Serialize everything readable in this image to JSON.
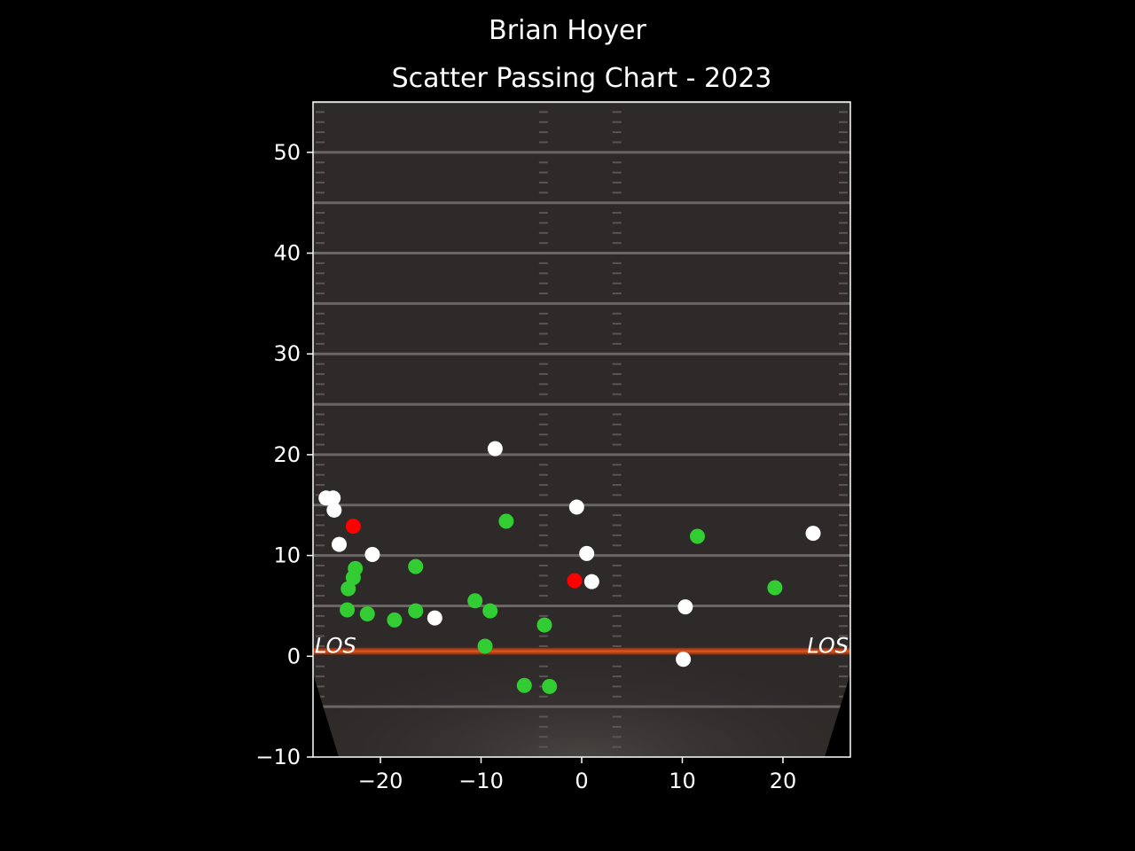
{
  "figure": {
    "suptitle": "Brian Hoyer",
    "title": "Scatter Passing Chart - 2023",
    "background_color": "#000000",
    "field_color": "#2e2a29",
    "los_label": "LOS"
  },
  "chart_data": {
    "type": "scatter",
    "title": "Scatter Passing Chart - 2023",
    "xlabel": "",
    "ylabel": "",
    "xlim": [
      -26.7,
      26.7
    ],
    "ylim": [
      -10,
      55
    ],
    "x_ticks": [
      -20,
      -10,
      0,
      10,
      20
    ],
    "y_ticks": [
      -10,
      0,
      10,
      20,
      30,
      40,
      50
    ],
    "x_tick_labels": [
      "−20",
      "−10",
      "0",
      "10",
      "20"
    ],
    "y_tick_labels": [
      "−10",
      "0",
      "10",
      "20",
      "30",
      "40",
      "50"
    ],
    "grid": false,
    "legend": "none",
    "series": [
      {
        "color": "#32cd32",
        "points": [
          [
            -7.5,
            13.4
          ],
          [
            11.5,
            11.9
          ],
          [
            -16.5,
            8.9
          ],
          [
            -22.5,
            8.7
          ],
          [
            -22.7,
            7.8
          ],
          [
            -23.2,
            6.7
          ],
          [
            19.2,
            6.8
          ],
          [
            -10.6,
            5.5
          ],
          [
            -9.1,
            4.5
          ],
          [
            -16.5,
            4.5
          ],
          [
            -23.3,
            4.6
          ],
          [
            -21.3,
            4.2
          ],
          [
            -18.6,
            3.6
          ],
          [
            -3.7,
            3.1
          ],
          [
            -9.6,
            1.0
          ],
          [
            -5.7,
            -2.9
          ],
          [
            -3.2,
            -3.0
          ]
        ]
      },
      {
        "color": "#ffffff",
        "points": [
          [
            -8.6,
            20.6
          ],
          [
            -25.4,
            15.7
          ],
          [
            -24.7,
            15.7
          ],
          [
            -24.6,
            14.5
          ],
          [
            -0.5,
            14.8
          ],
          [
            -24.1,
            11.1
          ],
          [
            23.0,
            12.2
          ],
          [
            -20.8,
            10.1
          ],
          [
            0.5,
            10.2
          ],
          [
            1.0,
            7.4
          ],
          [
            -14.6,
            3.8
          ],
          [
            10.3,
            4.9
          ],
          [
            10.1,
            -0.3
          ]
        ]
      },
      {
        "color": "#ff0000",
        "points": [
          [
            -22.7,
            12.9
          ],
          [
            -0.7,
            7.5
          ]
        ]
      }
    ]
  }
}
